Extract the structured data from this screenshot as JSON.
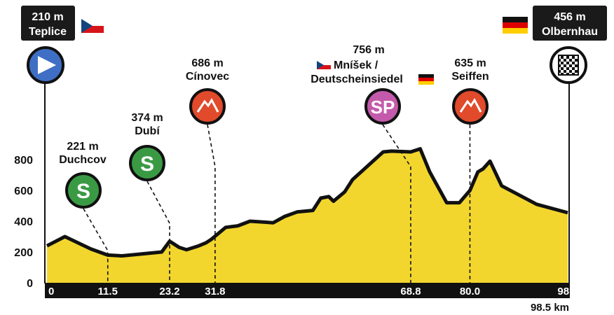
{
  "chart_data": {
    "type": "area",
    "title": "",
    "xlabel": "",
    "ylabel": "",
    "unit_total": "98.5 km",
    "xlim": [
      0,
      98.5
    ],
    "ylim": [
      0,
      900
    ],
    "y_ticks": [
      "0",
      "200",
      "400",
      "600",
      "800"
    ],
    "x_ticks": [
      {
        "x": 0,
        "label": "0"
      },
      {
        "x": 11.5,
        "label": "11.5"
      },
      {
        "x": 23.2,
        "label": "23.2"
      },
      {
        "x": 31.8,
        "label": "31.8"
      },
      {
        "x": 68.8,
        "label": "68.8"
      },
      {
        "x": 80.0,
        "label": "80.0"
      },
      {
        "x": 98.5,
        "label": "98.5"
      }
    ],
    "profile": {
      "x": [
        0,
        3.4,
        8.3,
        11.5,
        14.2,
        21.7,
        23.2,
        25.0,
        26.4,
        28.7,
        30.1,
        31.0,
        33.8,
        36.1,
        38.4,
        42.8,
        44.9,
        47.3,
        50.3,
        51.8,
        53.3,
        54.2,
        56.3,
        57.8,
        63.6,
        65.2,
        68.8,
        70.6,
        72.4,
        75.6,
        78.0,
        80.0,
        81.5,
        82.5,
        83.8,
        86.0,
        92.6,
        98.5
      ],
      "y": [
        240,
        300,
        220,
        180,
        175,
        200,
        270,
        230,
        215,
        240,
        260,
        280,
        360,
        370,
        400,
        390,
        430,
        460,
        470,
        550,
        560,
        530,
        590,
        670,
        850,
        855,
        850,
        870,
        720,
        520,
        520,
        600,
        720,
        740,
        790,
        630,
        510,
        455
      ]
    },
    "colors": {
      "fill": "#f2d62e",
      "outline": "#111111",
      "axis": "#111111"
    }
  },
  "start": {
    "elevation": "210 m",
    "name": "Teplice",
    "country_flag": "czech-flag",
    "marker": "play-icon",
    "color": "#3f6fc4"
  },
  "finish": {
    "elevation": "456 m",
    "name": "Olbernhau",
    "country_flag": "german-flag",
    "marker": "checkered-flag-icon",
    "color": "#ffffff"
  },
  "points": [
    {
      "km": 11.5,
      "elevation": "221 m",
      "name": "Duchcov",
      "badge": "S",
      "color": "#3a9a44"
    },
    {
      "km": 23.2,
      "elevation": "374 m",
      "name": "Dubí",
      "badge": "S",
      "color": "#3a9a44"
    },
    {
      "km": 31.8,
      "elevation": "686 m",
      "name": "Cínovec",
      "badge": "mountain-icon",
      "color": "#e14a2b"
    },
    {
      "km": 68.8,
      "elevation": "756 m",
      "name_line1": "Mníšek /",
      "name_line2": "Deutscheinsiedel",
      "badge": "SP",
      "color": "#c45aab"
    },
    {
      "km": 80.0,
      "elevation": "635 m",
      "name": "Seiffen",
      "badge": "mountain-icon",
      "color": "#e14a2b"
    }
  ]
}
